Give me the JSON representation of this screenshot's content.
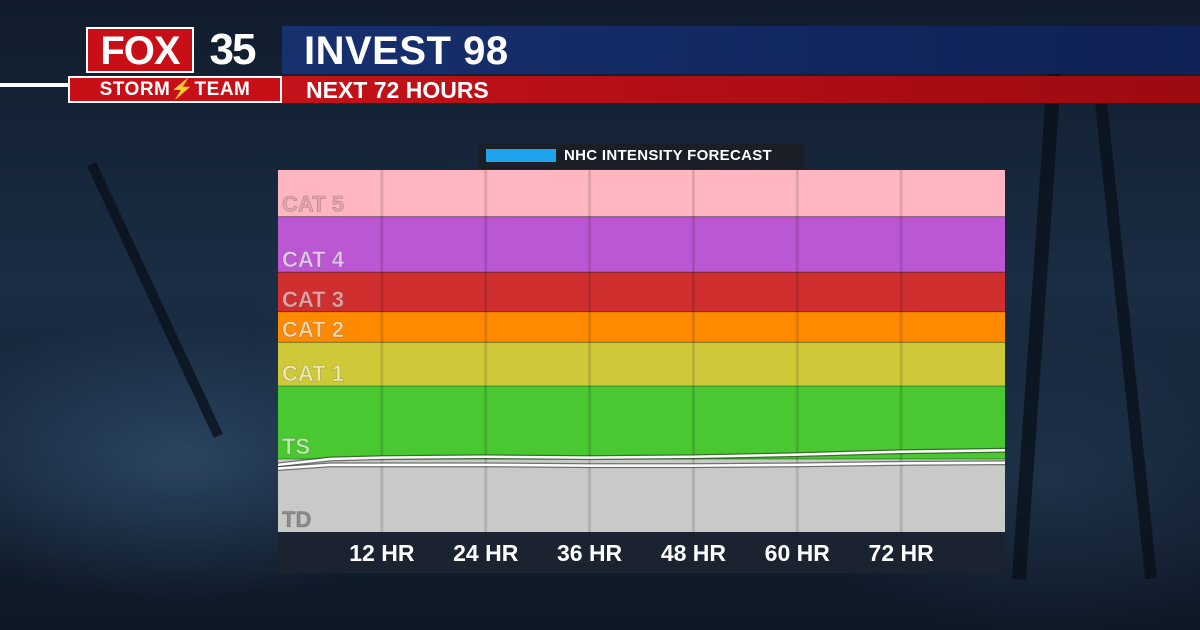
{
  "header": {
    "title": "INVEST 98",
    "subtitle": "NEXT 72 HOURS"
  },
  "logo": {
    "fox": "FOX",
    "number": "35",
    "team": "STORM⚡TEAM"
  },
  "legend": {
    "label": "NHC INTENSITY FORECAST",
    "color": "#1fa3ec"
  },
  "chart_data": {
    "type": "line",
    "title": "",
    "x_tick_labels": [
      "12 HR",
      "24 HR",
      "36 HR",
      "48 HR",
      "60 HR",
      "72 HR"
    ],
    "x_ticks": [
      12,
      24,
      36,
      48,
      60,
      72
    ],
    "xlim": [
      0,
      84
    ],
    "categories": [
      {
        "label": "CAT 5",
        "color": "#ffb6c1",
        "label_color": "#e3a5af",
        "weight": 1.12
      },
      {
        "label": "CAT 4",
        "color": "#bb57d2",
        "label_color": "#e6c2ee",
        "weight": 1.33
      },
      {
        "label": "CAT 3",
        "color": "#cf2f2f",
        "label_color": "#e9a0a0",
        "weight": 0.95
      },
      {
        "label": "CAT 2",
        "color": "#ff8a00",
        "label_color": "#ffd49a",
        "weight": 0.73
      },
      {
        "label": "CAT 1",
        "color": "#cfc93a",
        "label_color": "#eeeaa6",
        "weight": 1.05
      },
      {
        "label": "TS",
        "color": "#49c832",
        "label_color": "#b8eaa8",
        "weight": 1.75
      },
      {
        "label": "TD",
        "color": "#c8cac8",
        "label_color": "#8a8c8a",
        "weight": 1.75
      }
    ],
    "series": [
      {
        "x": [
          0,
          6,
          12,
          24,
          36,
          48,
          60,
          72,
          84
        ],
        "y": [
          0.92,
          1.0,
          1.02,
          1.03,
          1.02,
          1.03,
          1.06,
          1.1,
          1.12
        ]
      },
      {
        "x": [
          0,
          6,
          12,
          24,
          36,
          48,
          60,
          72,
          84
        ],
        "y": [
          0.87,
          0.92,
          0.92,
          0.92,
          0.91,
          0.91,
          0.92,
          0.94,
          0.95
        ]
      }
    ],
    "cone_color": "#ffffff",
    "x_axis_bg": "#1b2230"
  }
}
